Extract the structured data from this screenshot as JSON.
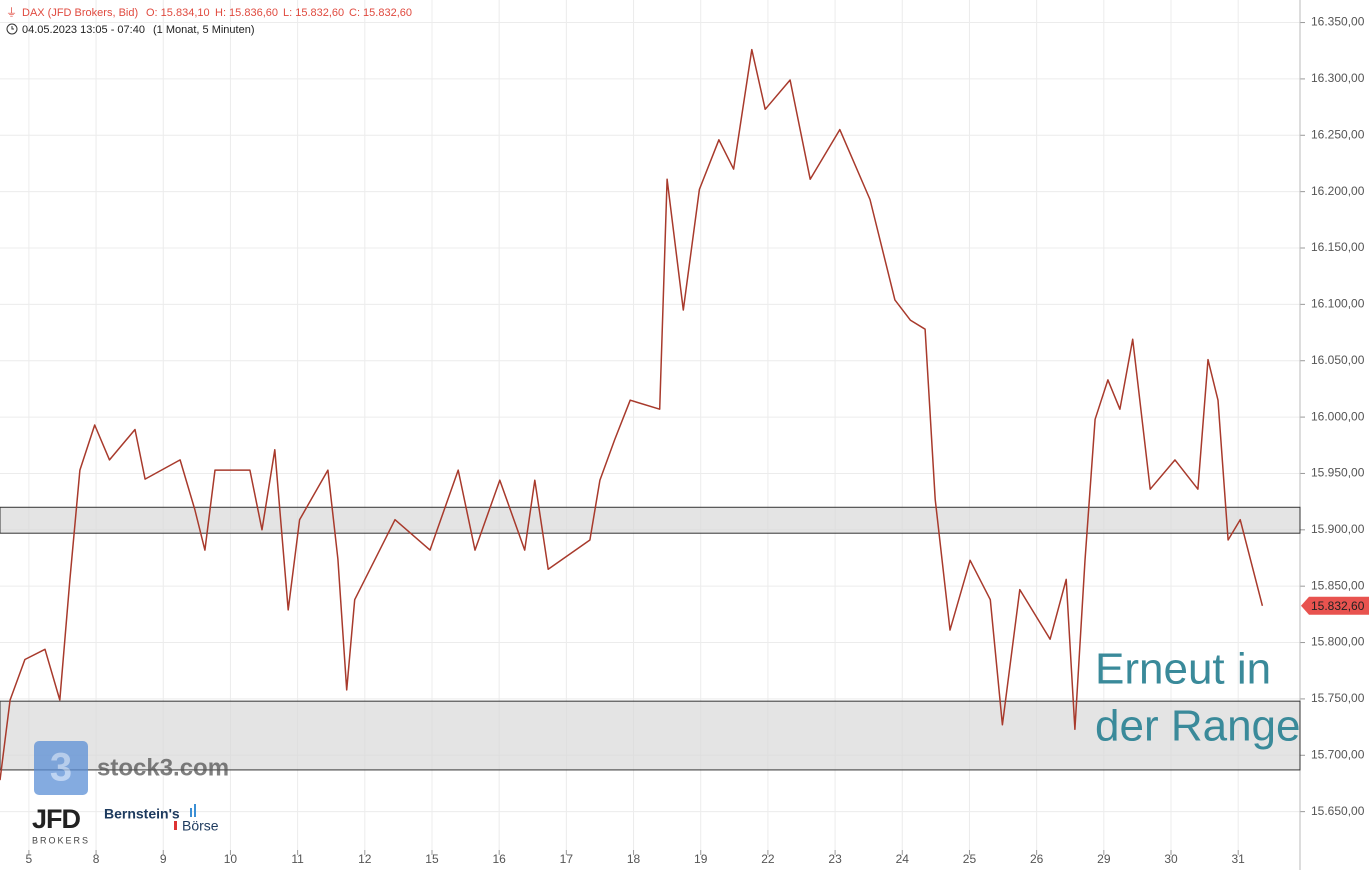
{
  "chart_data": {
    "type": "line",
    "title": "DAX (JFD Brokers, Bid)",
    "ohlc": [
      "O: 15.834,10",
      "H: 15.836,60",
      "L: 15.832,60",
      "C: 15.832,60"
    ],
    "subtitle": "04.05.2023 13:05 - 07:40",
    "period": "(1 Monat, 5 Minuten)",
    "x": [
      -0.43,
      -0.28,
      -0.06,
      0.24,
      0.46,
      0.61,
      0.76,
      0.98,
      1.2,
      1.58,
      1.73,
      2.25,
      2.47,
      2.62,
      2.77,
      3.29,
      3.47,
      3.66,
      3.86,
      4.03,
      4.45,
      4.6,
      4.73,
      4.85,
      5.45,
      5.97,
      6.39,
      6.64,
      7.01,
      7.38,
      7.53,
      7.73,
      8.35,
      8.5,
      8.72,
      8.95,
      9.39,
      9.5,
      9.74,
      9.98,
      10.27,
      10.49,
      10.76,
      10.96,
      11.33,
      11.63,
      12.07,
      12.52,
      12.89,
      13.12,
      13.34,
      13.49,
      13.71,
      14.01,
      14.31,
      14.49,
      14.75,
      15.2,
      15.44,
      15.57,
      15.72,
      15.87,
      16.06,
      16.24,
      16.43,
      16.69,
      17.06,
      17.4,
      17.55,
      17.7,
      17.85,
      18.03,
      18.36
    ],
    "series": [
      {
        "color": "#a83a2c",
        "values": [
          15678,
          15749,
          15785,
          15794,
          15749,
          15856,
          15953,
          15993,
          15962,
          15989,
          15945,
          15962,
          15918,
          15882,
          15953,
          15953,
          15900,
          15971,
          15829,
          15909,
          15953,
          15874,
          15758,
          15838,
          15909,
          15882,
          15953,
          15882,
          15944,
          15882,
          15944,
          15865,
          15891,
          15944,
          15980,
          16015,
          16007,
          16211,
          16095,
          16202,
          16246,
          16220,
          16326,
          16273,
          16299,
          16211,
          16255,
          16193,
          16104,
          16086,
          16078,
          15927,
          15811,
          15873,
          15838,
          15727,
          15847,
          15803,
          15856,
          15723,
          15873,
          15998,
          16033,
          16007,
          16069,
          15936,
          15962,
          15936,
          16051,
          16015,
          15891,
          15909,
          15832.6
        ]
      }
    ],
    "xlim": [
      -0.43,
      18.92
    ],
    "xticks": [
      {
        "value": 0,
        "label": "5"
      },
      {
        "value": 1,
        "label": "8"
      },
      {
        "value": 2,
        "label": "9"
      },
      {
        "value": 3,
        "label": "10"
      },
      {
        "value": 4,
        "label": "11"
      },
      {
        "value": 5,
        "label": "12"
      },
      {
        "value": 6,
        "label": "15"
      },
      {
        "value": 7,
        "label": "16"
      },
      {
        "value": 8,
        "label": "17"
      },
      {
        "value": 9,
        "label": "18"
      },
      {
        "value": 10,
        "label": "19"
      },
      {
        "value": 11,
        "label": "22"
      },
      {
        "value": 12,
        "label": "23"
      },
      {
        "value": 13,
        "label": "24"
      },
      {
        "value": 14,
        "label": "25"
      },
      {
        "value": 15,
        "label": "26"
      },
      {
        "value": 16,
        "label": "29"
      },
      {
        "value": 17,
        "label": "30"
      },
      {
        "value": 18,
        "label": "31"
      }
    ],
    "ylim": [
      15600,
      16370
    ],
    "yticks": [
      {
        "value": 15650,
        "label": "15.650,00"
      },
      {
        "value": 15700,
        "label": "15.700,00"
      },
      {
        "value": 15750,
        "label": "15.750,00"
      },
      {
        "value": 15800,
        "label": "15.800,00"
      },
      {
        "value": 15850,
        "label": "15.850,00"
      },
      {
        "value": 15900,
        "label": "15.900,00"
      },
      {
        "value": 15950,
        "label": "15.950,00"
      },
      {
        "value": 16000,
        "label": "16.000,00"
      },
      {
        "value": 16050,
        "label": "16.050,00"
      },
      {
        "value": 16100,
        "label": "16.100,00"
      },
      {
        "value": 16150,
        "label": "16.150,00"
      },
      {
        "value": 16200,
        "label": "16.200,00"
      },
      {
        "value": 16250,
        "label": "16.250,00"
      },
      {
        "value": 16300,
        "label": "16.300,00"
      },
      {
        "value": 16350,
        "label": "16.350,00"
      }
    ],
    "grid": true,
    "zones": [
      {
        "from": 15897,
        "to": 15920
      },
      {
        "from": 15687,
        "to": 15748
      }
    ],
    "last_price": {
      "value": 15832.6,
      "label": "15.832,60",
      "color": "#e8534f"
    },
    "annotation": [
      "Erneut in",
      "der Range"
    ],
    "logos": [
      "stock3.com",
      "JFD",
      "BROKERS",
      "Bernstein's",
      "Börse"
    ]
  }
}
